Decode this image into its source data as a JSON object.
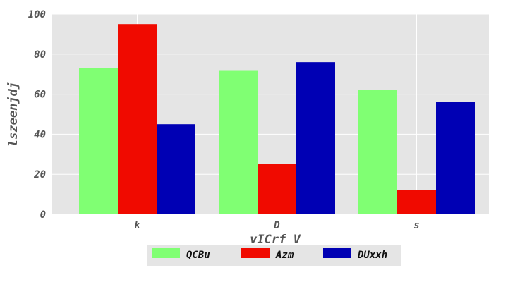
{
  "chart_data": {
    "type": "bar",
    "categories": [
      "k",
      "D",
      "s"
    ],
    "series": [
      {
        "name": "QCBu",
        "values": [
          73,
          72,
          62
        ],
        "color": "#80ff73"
      },
      {
        "name": "Azm",
        "values": [
          95,
          25,
          12
        ],
        "color": "#f00a00"
      },
      {
        "name": "DUxxh",
        "values": [
          45,
          76,
          56
        ],
        "color": "#0000b4"
      }
    ],
    "title": "",
    "xlabel": "vICrf V",
    "ylabel": "lszeenjdj",
    "ylim": [
      0,
      100
    ],
    "yticks": [
      0,
      20,
      40,
      60,
      80,
      100
    ],
    "grid": true,
    "legend": "bottom-center"
  }
}
